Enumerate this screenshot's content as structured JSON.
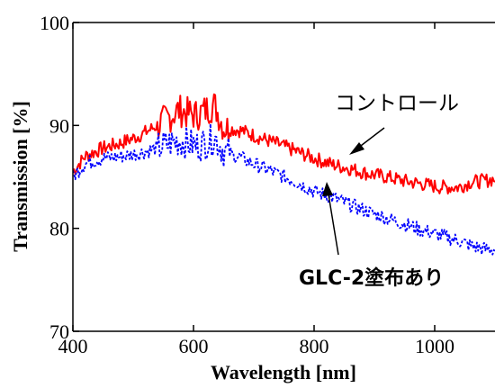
{
  "chart_data": {
    "type": "line",
    "title": "",
    "xlabel": "Wavelength [nm]",
    "ylabel": "Transmission [%]",
    "xlim": [
      400,
      1100
    ],
    "ylim": [
      70,
      100
    ],
    "x_ticks": [
      "400",
      "600",
      "800",
      "1000"
    ],
    "y_ticks": [
      "70",
      "80",
      "90",
      "100"
    ],
    "grid": false,
    "series": [
      {
        "name": "コントロール",
        "color": "#ff0000",
        "style": "solid",
        "x": [
          400,
          420,
          450,
          480,
          510,
          540,
          560,
          575,
          590,
          605,
          620,
          635,
          650,
          680,
          710,
          740,
          770,
          800,
          830,
          860,
          890,
          920,
          950,
          980,
          1010,
          1040,
          1060,
          1080,
          1100
        ],
        "y": [
          85.5,
          87.0,
          87.8,
          88.3,
          89.0,
          90.0,
          90.8,
          91.5,
          91.2,
          91.0,
          91.5,
          92.0,
          89.8,
          89.5,
          88.8,
          88.2,
          87.5,
          86.8,
          86.2,
          85.8,
          85.3,
          85.0,
          84.6,
          84.3,
          84.0,
          84.0,
          84.5,
          84.6,
          84.8
        ]
      },
      {
        "name": "GLC-2塗布あり",
        "color": "#0000ff",
        "style": "dotted",
        "x": [
          400,
          420,
          450,
          480,
          510,
          540,
          560,
          575,
          590,
          605,
          620,
          635,
          650,
          680,
          710,
          740,
          770,
          800,
          830,
          860,
          890,
          920,
          950,
          980,
          1010,
          1040,
          1060,
          1080,
          1100
        ],
        "y": [
          85.0,
          86.3,
          86.8,
          87.0,
          87.3,
          87.8,
          88.2,
          88.5,
          88.3,
          88.0,
          88.3,
          88.8,
          87.5,
          86.8,
          86.0,
          85.3,
          84.5,
          83.6,
          83.0,
          82.3,
          81.6,
          81.0,
          80.4,
          79.8,
          79.3,
          78.8,
          78.3,
          78.0,
          77.9
        ]
      }
    ],
    "annotations": [
      {
        "text": "コントロール",
        "points_to": "コントロール"
      },
      {
        "text": "GLC-2塗布あり",
        "points_to": "GLC-2塗布あり"
      }
    ]
  }
}
